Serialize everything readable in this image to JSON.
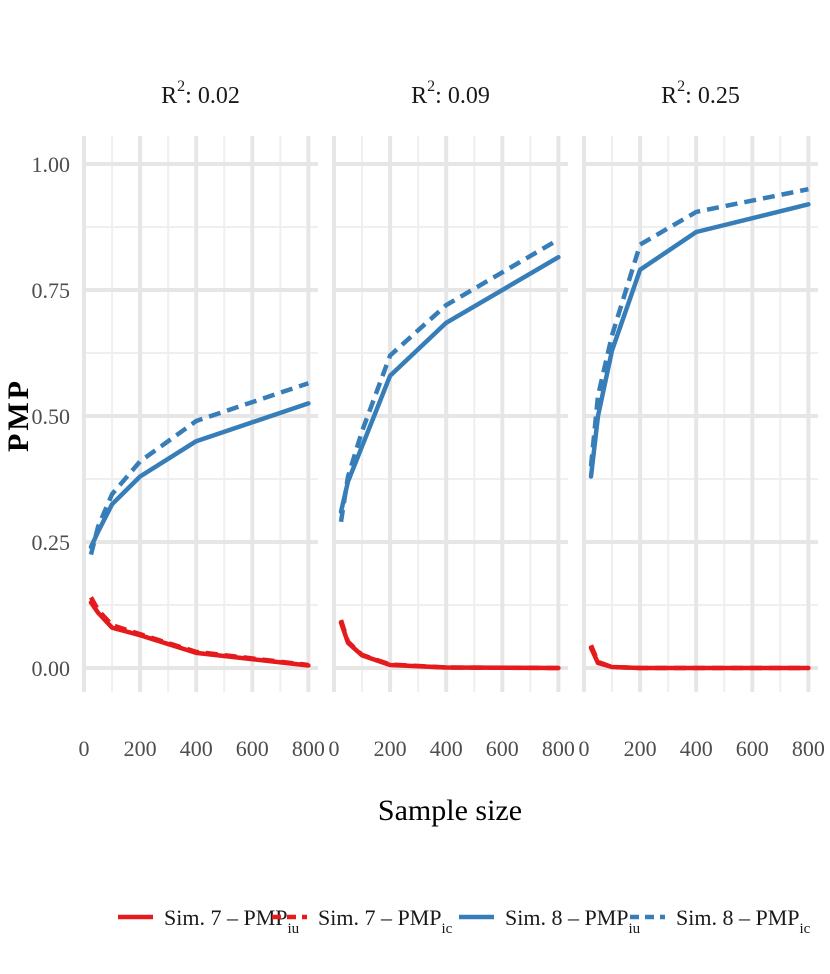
{
  "chart_data": {
    "type": "line",
    "xlabel": "Sample size",
    "ylabel": "PMP",
    "xlim": [
      0,
      800
    ],
    "ylim": [
      0,
      1
    ],
    "x_ticks": [
      "0",
      "200",
      "400",
      "600",
      "800"
    ],
    "y_ticks": [
      "0.00",
      "0.25",
      "0.50",
      "0.75",
      "1.00"
    ],
    "grid": true,
    "legend_position": "bottom",
    "legend": [
      {
        "base": "Sim. 7 – PMP",
        "sub": "iu",
        "color": "#e41a1c",
        "dashed": false
      },
      {
        "base": "Sim. 7 – PMP",
        "sub": "ic",
        "color": "#e41a1c",
        "dashed": true
      },
      {
        "base": "Sim. 8 – PMP",
        "sub": "iu",
        "color": "#377eb8",
        "dashed": false
      },
      {
        "base": "Sim. 8 – PMP",
        "sub": "ic",
        "color": "#377eb8",
        "dashed": true
      }
    ],
    "facets": [
      {
        "title_base": "R",
        "title_sup": "2",
        "title_rest": ": 0.02",
        "x": [
          25,
          50,
          100,
          200,
          400,
          800
        ],
        "series": [
          {
            "name": "Sim. 7 – PMPiu",
            "values": [
              0.13,
              0.11,
              0.08,
              0.065,
              0.03,
              0.005
            ]
          },
          {
            "name": "Sim. 7 – PMPic",
            "values": [
              0.14,
              0.115,
              0.085,
              0.067,
              0.032,
              0.006
            ]
          },
          {
            "name": "Sim. 8 – PMPiu",
            "values": [
              0.24,
              0.27,
              0.325,
              0.38,
              0.45,
              0.525
            ]
          },
          {
            "name": "Sim. 8 – PMPic",
            "values": [
              0.225,
              0.28,
              0.345,
              0.41,
              0.49,
              0.565
            ]
          }
        ]
      },
      {
        "title_base": "R",
        "title_sup": "2",
        "title_rest": ": 0.09",
        "x": [
          25,
          50,
          100,
          200,
          400,
          800
        ],
        "series": [
          {
            "name": "Sim. 7 – PMPiu",
            "values": [
              0.09,
              0.05,
              0.025,
              0.006,
              0.001,
              0.0
            ]
          },
          {
            "name": "Sim. 7 – PMPic",
            "values": [
              0.095,
              0.052,
              0.026,
              0.007,
              0.001,
              0.0
            ]
          },
          {
            "name": "Sim. 8 – PMPiu",
            "values": [
              0.31,
              0.37,
              0.44,
              0.58,
              0.685,
              0.815
            ]
          },
          {
            "name": "Sim. 8 – PMPic",
            "values": [
              0.29,
              0.38,
              0.47,
              0.62,
              0.72,
              0.85
            ]
          }
        ]
      },
      {
        "title_base": "R",
        "title_sup": "2",
        "title_rest": ": 0.25",
        "x": [
          25,
          50,
          100,
          200,
          400,
          800
        ],
        "series": [
          {
            "name": "Sim. 7 – PMPiu",
            "values": [
              0.04,
              0.01,
              0.002,
              0.0,
              0.0,
              0.0
            ]
          },
          {
            "name": "Sim. 7 – PMPic",
            "values": [
              0.045,
              0.012,
              0.002,
              0.0,
              0.0,
              0.0
            ]
          },
          {
            "name": "Sim. 8 – PMPiu",
            "values": [
              0.38,
              0.5,
              0.63,
              0.79,
              0.865,
              0.92
            ]
          },
          {
            "name": "Sim. 8 – PMPic",
            "values": [
              0.4,
              0.54,
              0.66,
              0.84,
              0.905,
              0.95
            ]
          }
        ]
      }
    ]
  }
}
